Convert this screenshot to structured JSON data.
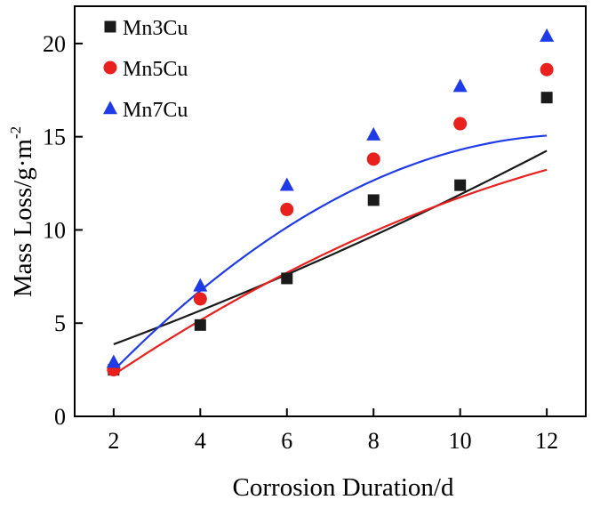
{
  "chart_data": {
    "type": "scatter",
    "title": "",
    "xlabel": "Corrosion Duration/d",
    "ylabel_main": "Mass Loss/g·m",
    "ylabel_sup": "-2",
    "xlim": [
      1.1,
      12.9
    ],
    "ylim": [
      0,
      22
    ],
    "xticks": [
      2,
      4,
      6,
      8,
      10,
      12
    ],
    "yticks": [
      0,
      5,
      10,
      15,
      20
    ],
    "xtick_labels": [
      "2",
      "4",
      "6",
      "8",
      "10",
      "12"
    ],
    "ytick_labels": [
      "0",
      "5",
      "10",
      "15",
      "20"
    ],
    "grid": false,
    "legend_position": "top-left",
    "series": [
      {
        "name": "Mn3Cu",
        "marker": "square",
        "color": "#1a1a1a",
        "x": [
          2,
          4,
          6,
          8,
          10,
          12
        ],
        "y": [
          2.5,
          4.9,
          7.4,
          11.6,
          12.4,
          17.1
        ],
        "fit": [
          2.2,
          0.8,
          0.017
        ]
      },
      {
        "name": "Mn5Cu",
        "marker": "circle",
        "color": "#e8201e",
        "x": [
          2,
          4,
          6,
          8,
          10,
          12
        ],
        "y": [
          2.5,
          6.3,
          11.1,
          13.8,
          15.7,
          18.6
        ],
        "fit": [
          -1.05,
          1.73,
          -0.045
        ]
      },
      {
        "name": "Mn7Cu",
        "marker": "triangle",
        "color": "#1f3be8",
        "x": [
          2,
          4,
          6,
          8,
          10,
          12
        ],
        "y": [
          2.9,
          7.0,
          12.4,
          15.1,
          17.7,
          20.4
        ],
        "fit": [
          -2.7,
          2.8,
          -0.11
        ]
      }
    ]
  }
}
